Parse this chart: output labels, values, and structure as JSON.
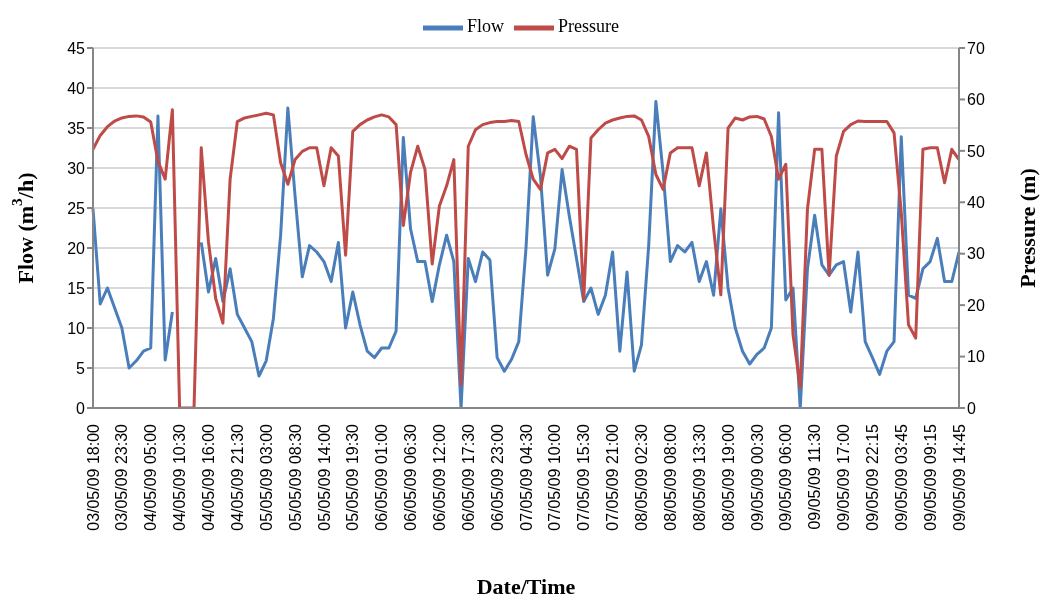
{
  "chart_data": {
    "type": "line",
    "xlabel": "Date/Time",
    "ylabel": "Flow (m$^{3}$/h)",
    "y2label": "Pressure (m)",
    "categories": [
      "03/05/09 18:00",
      null,
      null,
      null,
      "03/05/09 23:30",
      null,
      null,
      null,
      "04/05/09 05:00",
      null,
      null,
      null,
      "04/05/09 10:30",
      null,
      null,
      null,
      "04/05/09 16:00",
      null,
      null,
      null,
      "04/05/09 21:30",
      null,
      null,
      null,
      "05/05/09 03:00",
      null,
      null,
      null,
      "05/05/09 08:30",
      null,
      null,
      null,
      "05/05/09 14:00",
      null,
      null,
      null,
      "05/05/09 19:30",
      null,
      null,
      null,
      "06/05/09 01:00",
      null,
      null,
      null,
      "06/05/09 06:30",
      null,
      null,
      null,
      "06/05/09 12:00",
      null,
      null,
      null,
      "06/05/09 17:30",
      null,
      null,
      null,
      "06/05/09 23:00",
      null,
      null,
      null,
      "07/05/09 04:30",
      null,
      null,
      null,
      "07/05/09 10:00",
      null,
      null,
      null,
      "07/05/09 15:30",
      null,
      null,
      null,
      "07/05/09 21:00",
      null,
      null,
      null,
      "08/05/09 02:30",
      null,
      null,
      null,
      "08/05/09 08:00",
      null,
      null,
      null,
      "08/05/09 13:30",
      null,
      null,
      null,
      "08/05/09 19:00",
      null,
      null,
      null,
      "09/05/09 00:30",
      null,
      null,
      null,
      "09/05/09 06:00",
      null,
      null,
      null,
      "09/05/09 11:30",
      null,
      null,
      null,
      "09/05/09 17:00",
      null,
      null,
      null,
      "09/05/09 22:15",
      null,
      null,
      null,
      "09/05/09 03:45",
      null,
      null,
      null,
      "09/05/09 09:15",
      null,
      null,
      null,
      "09/05/09 14:45"
    ],
    "series": [
      {
        "name": "Flow",
        "color": "#4a7ebb",
        "values": [
          24.9,
          13,
          15,
          12.5,
          10,
          5,
          5.9,
          7.1,
          7.5,
          36.5,
          6,
          12,
          null,
          null,
          null,
          20.7,
          14.5,
          18.7,
          13.3,
          17.4,
          11.7,
          10,
          8.3,
          4,
          5.9,
          11.2,
          21.6,
          37.5,
          26.5,
          16.4,
          20.3,
          19.5,
          18.3,
          15.8,
          20.7,
          10,
          14.5,
          10.4,
          7.1,
          6.3,
          7.5,
          7.5,
          9.6,
          33.8,
          22.4,
          18.3,
          18.3,
          13.3,
          17.9,
          21.6,
          18.3,
          0,
          18.7,
          15.8,
          19.5,
          18.5,
          6.3,
          4.6,
          6.1,
          8.3,
          20,
          36.4,
          29,
          16.6,
          19.9,
          29.8,
          24,
          18.7,
          13.3,
          15,
          11.7,
          14.1,
          19.5,
          7.1,
          17,
          4.6,
          7.9,
          20.3,
          38.3,
          29.4,
          18.3,
          20.3,
          19.5,
          20.7,
          15.8,
          18.3,
          14.1,
          24.9,
          15,
          10,
          7.1,
          5.5,
          6.7,
          7.5,
          10,
          36.9,
          13.5,
          15,
          0,
          17.4,
          24.1,
          17.9,
          16.6,
          17.9,
          18.3,
          12,
          19.5,
          8.3,
          6.3,
          4.2,
          7.1,
          8.3,
          33.9,
          14.1,
          13.7,
          17.4,
          18.3,
          21.2,
          15.8,
          15.8,
          19.5
        ]
      },
      {
        "name": "Pressure",
        "color": "#be4b48",
        "axis": "y2",
        "values": [
          50.3,
          53,
          54.7,
          55.8,
          56.4,
          56.7,
          56.8,
          56.6,
          55.6,
          48,
          44.5,
          58,
          0,
          0,
          0,
          50.6,
          32.3,
          21.3,
          16.5,
          44.5,
          55.7,
          56.4,
          56.7,
          57,
          57.3,
          57,
          47.7,
          43.5,
          48.3,
          49.9,
          50.6,
          50.6,
          43.2,
          50.6,
          49,
          29.7,
          53.8,
          55.1,
          56,
          56.6,
          57,
          56.6,
          55.1,
          35.5,
          45.8,
          50.9,
          46.4,
          28,
          39.3,
          43.2,
          48.3,
          4.5,
          50.9,
          54.1,
          55.1,
          55.5,
          55.7,
          55.7,
          55.9,
          55.7,
          49.3,
          44.5,
          42.5,
          49.6,
          50.3,
          48.5,
          50.9,
          50.3,
          21,
          52.5,
          54.1,
          55.4,
          56,
          56.4,
          56.7,
          56.8,
          56,
          52.8,
          45.4,
          42.5,
          49.6,
          50.6,
          50.6,
          50.6,
          43.2,
          49.6,
          34.8,
          22,
          54.4,
          56.4,
          56,
          56.6,
          56.7,
          56.2,
          52.8,
          44.5,
          47.4,
          14.3,
          4,
          38.7,
          50.3,
          50.3,
          25.8,
          49,
          53.8,
          55.1,
          55.8,
          55.7,
          55.7,
          55.7,
          55.7,
          53.5,
          38,
          16.2,
          13.6,
          50.3,
          50.6,
          50.6,
          43.8,
          50.3,
          48.3
        ]
      }
    ],
    "ylim": [
      0,
      45
    ],
    "yticks": [
      0,
      5,
      10,
      15,
      20,
      25,
      30,
      35,
      40,
      45
    ],
    "y2lim": [
      0,
      70
    ],
    "y2ticks": [
      0,
      10,
      20,
      30,
      40,
      50,
      60,
      70
    ],
    "grid": "y",
    "legend": "top",
    "line_style": "solid"
  }
}
